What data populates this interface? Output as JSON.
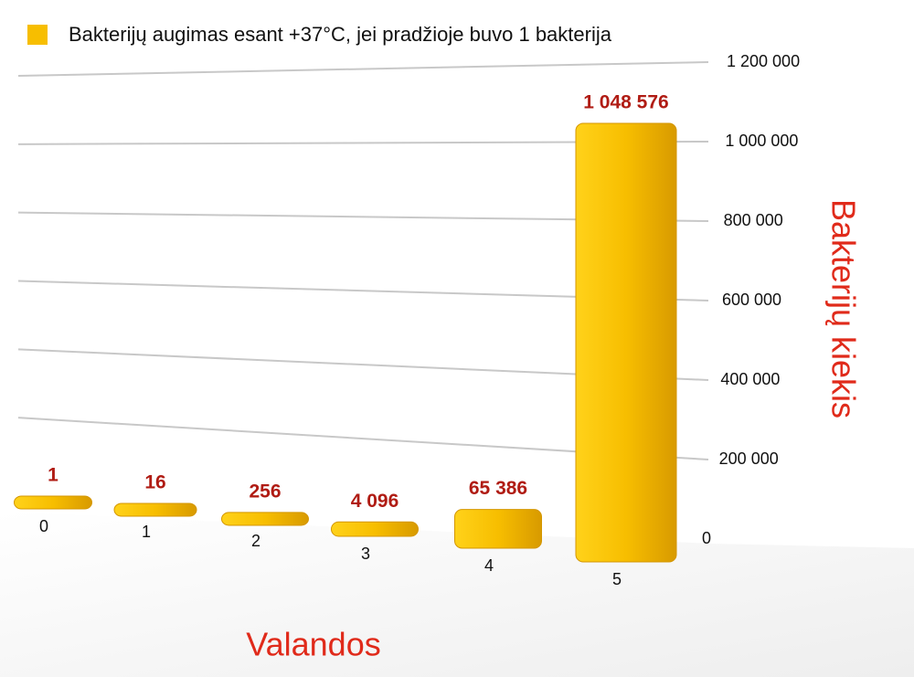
{
  "chart_data": {
    "type": "bar",
    "legend": "Bakterijų augimas esant +37°C, jei pradžioje buvo 1 bakterija",
    "x_label": "Valandos",
    "y_label": "Bakterijų kiekis",
    "categories": [
      "0",
      "1",
      "2",
      "3",
      "4",
      "5"
    ],
    "values": [
      1,
      16,
      256,
      4096,
      65386,
      1048576
    ],
    "value_labels": [
      "1",
      "16",
      "256",
      "4 096",
      "65 386",
      "1 048 576"
    ],
    "color": "#f7be00",
    "ylim": [
      0,
      1200000
    ],
    "yticks": [
      0,
      {
        "value": 200000,
        "label": "200 000"
      },
      {
        "value": 400000,
        "label": "400 000"
      },
      {
        "value": 600000,
        "label": "600 000"
      },
      {
        "value": 800000,
        "label": "800 000"
      },
      {
        "value": 1000000,
        "label": "1 000 000"
      },
      {
        "value": 1200000,
        "label": "1 200 000"
      }
    ],
    "grid": true
  }
}
